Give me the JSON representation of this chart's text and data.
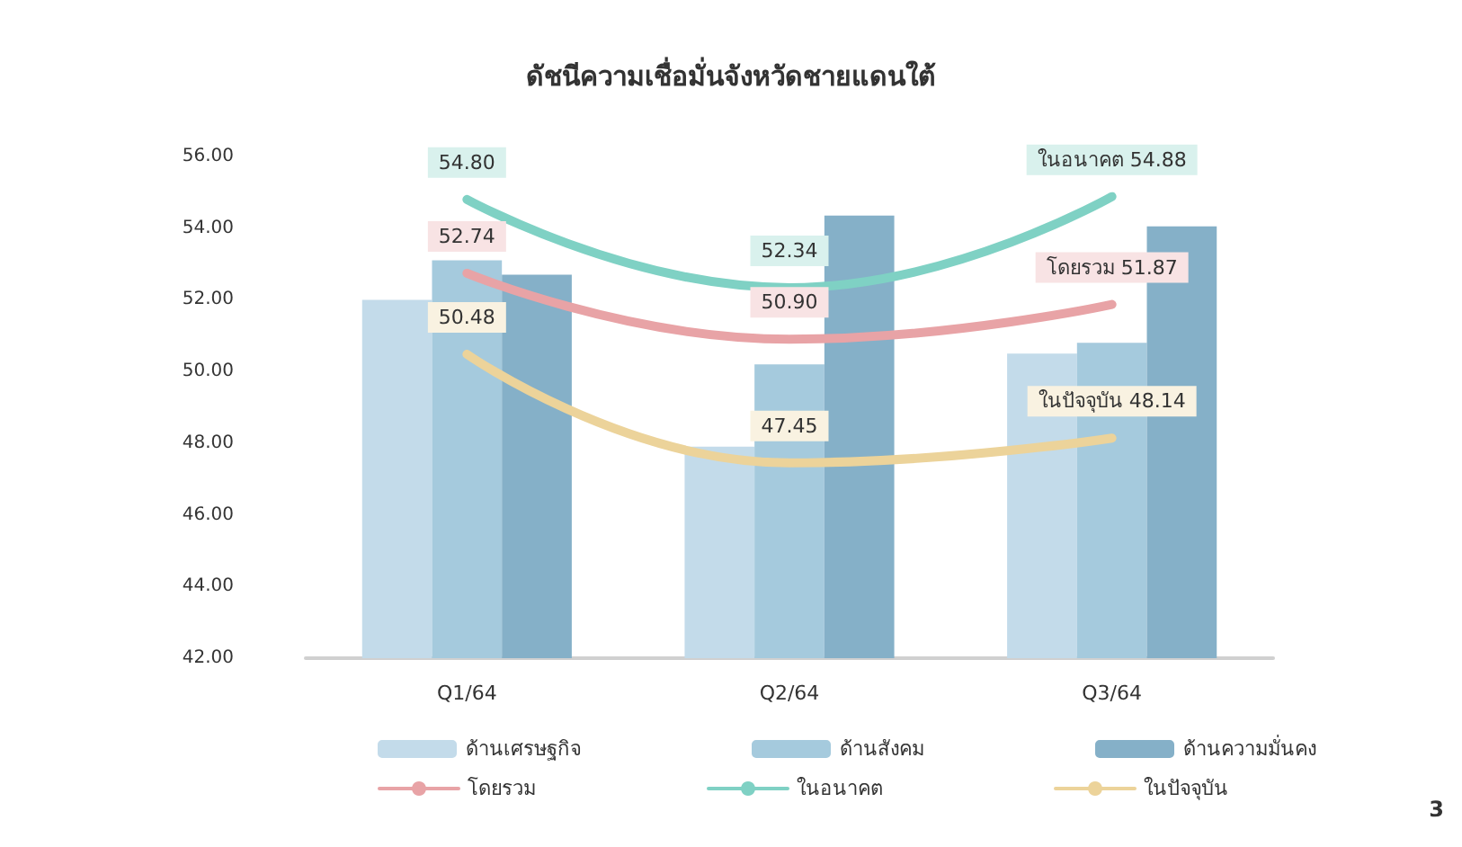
{
  "chart_data": {
    "type": "bar",
    "title": "ดัชนีความเชื่อมั่นจังหวัดชายแดนใต้",
    "categories": [
      "Q1/64",
      "Q2/64",
      "Q3/64"
    ],
    "series": [
      {
        "name": "ด้านเศรษฐกิจ",
        "color": "#c3dbea",
        "values": [
          52.0,
          47.9,
          50.5
        ]
      },
      {
        "name": "ด้านสังคม",
        "color": "#a5cadd",
        "values": [
          53.1,
          50.2,
          50.8
        ]
      },
      {
        "name": "ด้านความมั่นคง",
        "color": "#85b0c8",
        "values": [
          52.7,
          54.35,
          54.05
        ]
      },
      {
        "name": "โดยรวม",
        "type": "line",
        "color": "#e8a3a6",
        "values": [
          52.74,
          50.9,
          51.87
        ],
        "value_labels": [
          "52.74",
          "50.90",
          "โดยรวม 51.87"
        ]
      },
      {
        "name": "ในอนาคต",
        "type": "line",
        "color": "#7fd1c4",
        "values": [
          54.8,
          52.34,
          54.88
        ],
        "value_labels": [
          "54.80",
          "52.34",
          "ในอนาคต 54.88"
        ]
      },
      {
        "name": "ในปัจจุบัน",
        "type": "line",
        "color": "#ecd39a",
        "values": [
          50.48,
          47.45,
          48.14
        ],
        "value_labels": [
          "50.48",
          "47.45",
          "ในปัจจุบัน 48.14"
        ]
      }
    ],
    "ylim": [
      42,
      56
    ],
    "yticks": [
      {
        "value": 42,
        "label": "42.00"
      },
      {
        "value": 44,
        "label": "44.00"
      },
      {
        "value": 46,
        "label": "46.00"
      },
      {
        "value": 48,
        "label": "48.00"
      },
      {
        "value": 50,
        "label": "50.00"
      },
      {
        "value": 52,
        "label": "52.00"
      },
      {
        "value": 54,
        "label": "54.00"
      },
      {
        "value": 56,
        "label": "56.00"
      }
    ],
    "grid": false,
    "legend": "bottom",
    "marker": "none",
    "line_style": "solid",
    "annotations": [
      "3"
    ]
  }
}
